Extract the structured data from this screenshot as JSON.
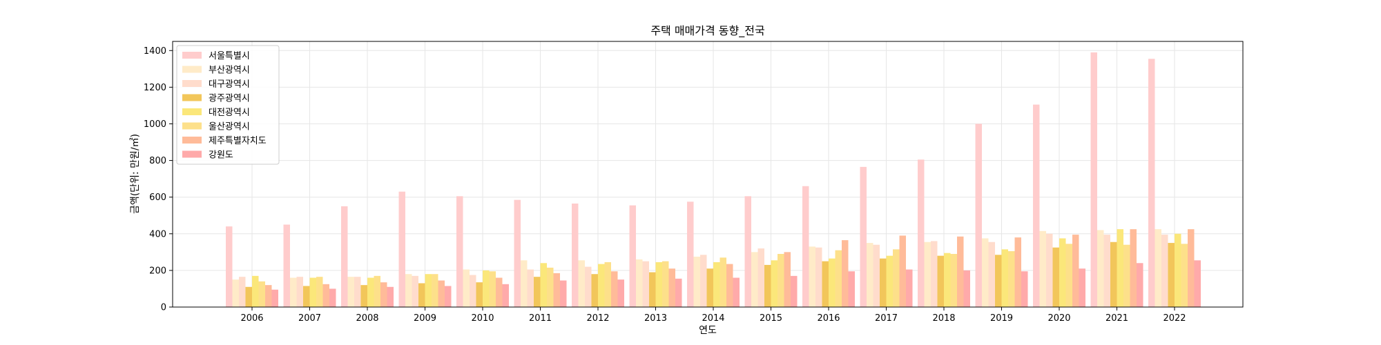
{
  "chart_data": {
    "type": "bar",
    "title": "주택 매매가격 동향_전국",
    "xlabel": "연도",
    "ylabel": "금액(단위: 만원/㎡)",
    "ylim": [
      0,
      1450
    ],
    "yticks": [
      0,
      200,
      400,
      600,
      800,
      1000,
      1200,
      1400
    ],
    "grid": true,
    "legend_position": "top-left",
    "categories": [
      "2006",
      "2007",
      "2008",
      "2009",
      "2010",
      "2011",
      "2012",
      "2013",
      "2014",
      "2015",
      "2016",
      "2017",
      "2018",
      "2019",
      "2020",
      "2021",
      "2022"
    ],
    "series": [
      {
        "name": "서울특별시",
        "color": "#ffcccc",
        "values": [
          440,
          450,
          550,
          630,
          605,
          585,
          565,
          555,
          575,
          605,
          660,
          765,
          805,
          1000,
          1105,
          1390,
          1355
        ]
      },
      {
        "name": "부산광역시",
        "color": "#ffebc8",
        "values": [
          150,
          160,
          165,
          180,
          205,
          255,
          255,
          260,
          275,
          300,
          330,
          350,
          355,
          375,
          415,
          420,
          425
        ]
      },
      {
        "name": "대구광역시",
        "color": "#ffdccc",
        "values": [
          165,
          165,
          165,
          170,
          175,
          205,
          220,
          250,
          285,
          320,
          325,
          340,
          360,
          355,
          400,
          395,
          395
        ]
      },
      {
        "name": "광주광역시",
        "color": "#f2c65a",
        "values": [
          110,
          115,
          120,
          130,
          135,
          165,
          180,
          190,
          210,
          230,
          250,
          265,
          280,
          285,
          325,
          355,
          350
        ]
      },
      {
        "name": "대전광역시",
        "color": "#fbe77a",
        "values": [
          170,
          160,
          160,
          180,
          200,
          240,
          235,
          245,
          245,
          255,
          265,
          280,
          295,
          315,
          375,
          425,
          400
        ]
      },
      {
        "name": "울산광역시",
        "color": "#fde08a",
        "values": [
          140,
          165,
          170,
          180,
          195,
          215,
          245,
          250,
          270,
          290,
          310,
          315,
          290,
          305,
          345,
          340,
          345
        ]
      },
      {
        "name": "제주특별자치도",
        "color": "#ffbb99",
        "values": [
          120,
          125,
          135,
          145,
          160,
          185,
          195,
          210,
          235,
          300,
          365,
          390,
          385,
          380,
          395,
          425,
          425
        ]
      },
      {
        "name": "강원도",
        "color": "#ffaaaa",
        "values": [
          95,
          100,
          110,
          115,
          125,
          145,
          150,
          155,
          160,
          170,
          195,
          205,
          200,
          195,
          210,
          240,
          255
        ]
      }
    ]
  }
}
